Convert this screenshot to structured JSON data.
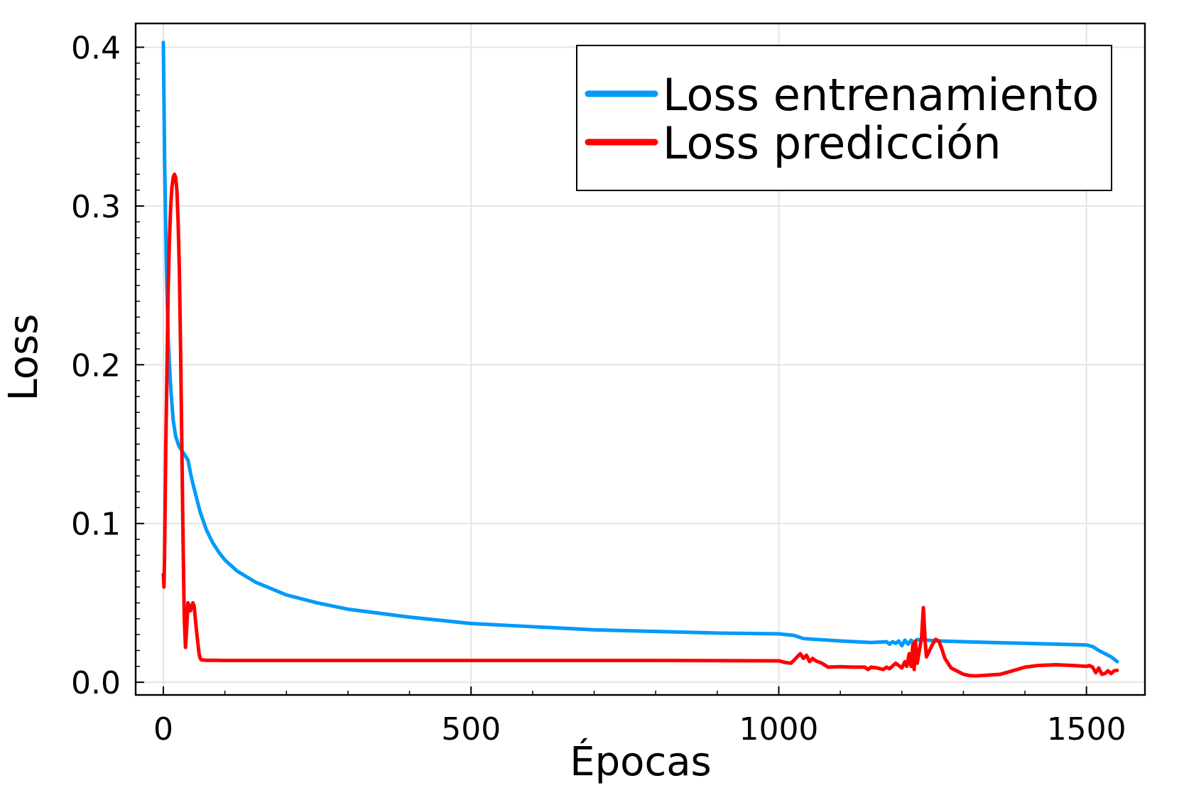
{
  "chart_data": {
    "type": "line",
    "title": "",
    "xlabel": "Épocas",
    "ylabel": "Loss",
    "xlim": [
      -45,
      1595
    ],
    "ylim": [
      -0.008,
      0.415
    ],
    "xticks": [
      0,
      500,
      1000,
      1500
    ],
    "yticks": [
      0.0,
      0.1,
      0.2,
      0.3,
      0.4
    ],
    "xtick_labels": [
      "0",
      "500",
      "1000",
      "1500"
    ],
    "ytick_labels": [
      "0.0",
      "0.1",
      "0.2",
      "0.3",
      "0.4"
    ],
    "grid": true,
    "legend_position": "top-right",
    "series": [
      {
        "name": "Loss entrenamiento",
        "color": "#009af9",
        "x": [
          0,
          2,
          5,
          8,
          12,
          16,
          20,
          25,
          30,
          35,
          40,
          45,
          50,
          60,
          70,
          80,
          90,
          100,
          120,
          150,
          200,
          250,
          300,
          400,
          500,
          600,
          700,
          800,
          900,
          1000,
          1025,
          1040,
          1060,
          1100,
          1150,
          1175,
          1180,
          1185,
          1190,
          1195,
          1200,
          1205,
          1210,
          1215,
          1220,
          1225,
          1230,
          1240,
          1260,
          1300,
          1400,
          1450,
          1500,
          1510,
          1520,
          1530,
          1540,
          1550
        ],
        "y": [
          0.403,
          0.33,
          0.26,
          0.215,
          0.185,
          0.165,
          0.155,
          0.149,
          0.146,
          0.143,
          0.14,
          0.13,
          0.122,
          0.107,
          0.096,
          0.088,
          0.082,
          0.077,
          0.07,
          0.063,
          0.055,
          0.05,
          0.046,
          0.041,
          0.037,
          0.035,
          0.033,
          0.032,
          0.031,
          0.0305,
          0.0295,
          0.0275,
          0.027,
          0.026,
          0.025,
          0.0255,
          0.024,
          0.0255,
          0.0245,
          0.026,
          0.023,
          0.0265,
          0.024,
          0.0265,
          0.0245,
          0.027,
          0.0265,
          0.0265,
          0.026,
          0.0255,
          0.0245,
          0.024,
          0.0235,
          0.0225,
          0.02,
          0.018,
          0.016,
          0.013
        ]
      },
      {
        "name": "Loss predicción",
        "color": "#ff0000",
        "x": [
          0,
          1,
          2,
          4,
          6,
          8,
          10,
          12,
          14,
          16,
          18,
          20,
          22,
          24,
          26,
          28,
          30,
          32,
          34,
          36,
          38,
          40,
          42,
          44,
          46,
          48,
          50,
          52,
          54,
          56,
          58,
          60,
          62,
          64,
          66,
          68,
          70,
          80,
          100,
          200,
          500,
          800,
          1000,
          1010,
          1020,
          1025,
          1030,
          1035,
          1040,
          1045,
          1050,
          1055,
          1060,
          1070,
          1080,
          1100,
          1120,
          1140,
          1145,
          1150,
          1160,
          1170,
          1175,
          1180,
          1190,
          1200,
          1205,
          1208,
          1212,
          1215,
          1218,
          1220,
          1222,
          1225,
          1228,
          1232,
          1235,
          1238,
          1240,
          1245,
          1250,
          1255,
          1260,
          1265,
          1270,
          1280,
          1290,
          1300,
          1310,
          1320,
          1340,
          1360,
          1380,
          1400,
          1420,
          1450,
          1480,
          1500,
          1505,
          1510,
          1515,
          1520,
          1525,
          1530,
          1535,
          1540,
          1545,
          1550
        ],
        "y": [
          0.068,
          0.06,
          0.08,
          0.15,
          0.2,
          0.25,
          0.28,
          0.3,
          0.312,
          0.318,
          0.32,
          0.318,
          0.31,
          0.29,
          0.26,
          0.21,
          0.15,
          0.09,
          0.04,
          0.022,
          0.035,
          0.05,
          0.048,
          0.045,
          0.048,
          0.05,
          0.048,
          0.04,
          0.032,
          0.025,
          0.018,
          0.015,
          0.014,
          0.014,
          0.014,
          0.0138,
          0.0138,
          0.0138,
          0.0137,
          0.0137,
          0.0137,
          0.0137,
          0.0135,
          0.0125,
          0.012,
          0.014,
          0.016,
          0.018,
          0.015,
          0.017,
          0.013,
          0.015,
          0.0135,
          0.012,
          0.0095,
          0.0098,
          0.0095,
          0.0095,
          0.008,
          0.0095,
          0.009,
          0.008,
          0.0095,
          0.0085,
          0.012,
          0.009,
          0.013,
          0.01,
          0.018,
          0.01,
          0.024,
          0.008,
          0.026,
          0.012,
          0.019,
          0.028,
          0.047,
          0.025,
          0.016,
          0.02,
          0.024,
          0.027,
          0.026,
          0.021,
          0.015,
          0.009,
          0.007,
          0.005,
          0.0042,
          0.004,
          0.0045,
          0.005,
          0.0072,
          0.0095,
          0.0105,
          0.011,
          0.0105,
          0.01,
          0.0105,
          0.0095,
          0.006,
          0.009,
          0.005,
          0.0055,
          0.0072,
          0.0055,
          0.0072,
          0.0075
        ]
      }
    ]
  }
}
